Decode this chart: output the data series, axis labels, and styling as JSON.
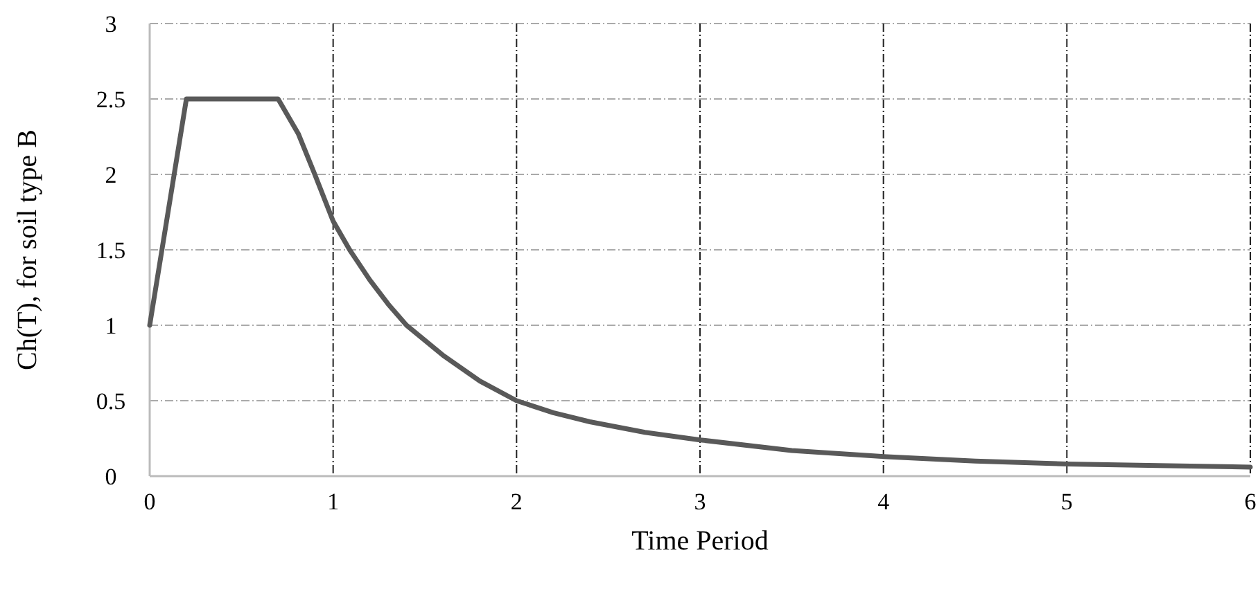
{
  "chart_data": {
    "type": "line",
    "xlabel": "Time Period",
    "ylabel": "Ch(T), for soil type B",
    "x": [
      0,
      0.2,
      0.7,
      0.81,
      0.9,
      1,
      1.09,
      1.2,
      1.3,
      1.4,
      1.6,
      1.8,
      2,
      2.2,
      2.4,
      2.7,
      3,
      3.5,
      4,
      4.5,
      5,
      5.5,
      6
    ],
    "series": [
      {
        "color": "#595959",
        "values": [
          1,
          2.5,
          2.5,
          2.27,
          2.0,
          1.69,
          1.5,
          1.3,
          1.14,
          1.0,
          0.8,
          0.63,
          0.5,
          0.42,
          0.36,
          0.29,
          0.24,
          0.17,
          0.13,
          0.1,
          0.08,
          0.07,
          0.06
        ]
      }
    ],
    "xlim": [
      0,
      6
    ],
    "xticks": [
      0,
      1,
      2,
      3,
      4,
      5,
      6
    ],
    "ylim": [
      0,
      3
    ],
    "yticks": [
      0,
      0.5,
      1,
      1.5,
      2,
      2.5,
      3
    ],
    "grid": true,
    "marker": "none",
    "line_style": "solid"
  }
}
